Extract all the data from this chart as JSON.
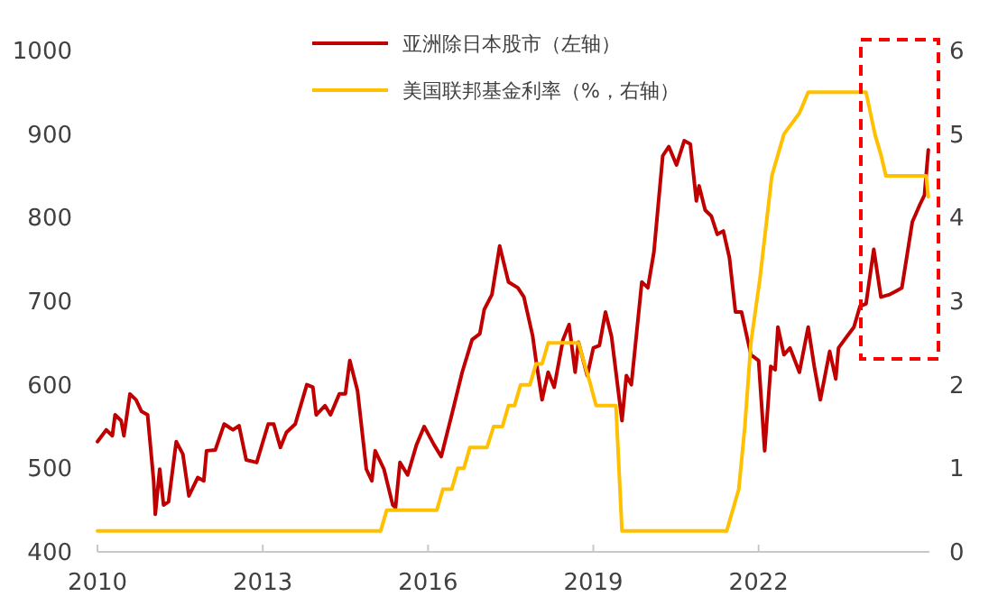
{
  "chart_data": {
    "type": "line",
    "legend": "top",
    "marker": "none",
    "line_style": "solid",
    "grid": false,
    "xlim": [
      2010,
      2025.1
    ],
    "xticks": [
      2010,
      2013,
      2016,
      2019,
      2022
    ],
    "ylim": [
      400,
      1000
    ],
    "yticks": [
      400,
      500,
      600,
      700,
      800,
      900,
      1000
    ],
    "y2lim": [
      0,
      6
    ],
    "y2ticks": [
      0,
      1,
      2,
      3,
      4,
      5,
      6
    ],
    "series": [
      {
        "name": "亚洲除日本股市（左轴）",
        "color": "#c00000",
        "x": [
          2010,
          2010.16,
          2010.27,
          2010.32,
          2010.43,
          2010.48,
          2010.59,
          2010.7,
          2010.8,
          2010.91,
          2011.02,
          2011.05,
          2011.13,
          2011.2,
          2011.29,
          2011.43,
          2011.55,
          2011.66,
          2011.82,
          2011.93,
          2011.98,
          2012.14,
          2012.3,
          2012.46,
          2012.57,
          2012.7,
          2012.89,
          2013.1,
          2013.2,
          2013.32,
          2013.43,
          2013.59,
          2013.8,
          2013.91,
          2013.97,
          2014.13,
          2014.23,
          2014.39,
          2014.5,
          2014.58,
          2014.72,
          2014.88,
          2014.98,
          2015.04,
          2015.2,
          2015.36,
          2015.41,
          2015.49,
          2015.63,
          2015.79,
          2015.93,
          2016.11,
          2016.24,
          2016.43,
          2016.62,
          2016.8,
          2016.94,
          2017.02,
          2017.16,
          2017.3,
          2017.46,
          2017.63,
          2017.74,
          2017.9,
          2017.96,
          2018.07,
          2018.18,
          2018.29,
          2018.45,
          2018.56,
          2018.67,
          2018.73,
          2018.89,
          2019,
          2019.11,
          2019.22,
          2019.33,
          2019.52,
          2019.6,
          2019.69,
          2019.88,
          2019.99,
          2020.1,
          2020.26,
          2020.37,
          2020.51,
          2020.65,
          2020.76,
          2020.87,
          2020.92,
          2021.03,
          2021.14,
          2021.25,
          2021.36,
          2021.47,
          2021.58,
          2021.69,
          2021.86,
          2022,
          2022.11,
          2022.22,
          2022.3,
          2022.35,
          2022.46,
          2022.57,
          2022.74,
          2022.9,
          2023.01,
          2023.12,
          2023.29,
          2023.4,
          2023.45,
          2023.56,
          2023.73,
          2023.84,
          2023.95,
          2024.09,
          2024.22,
          2024.38,
          2024.49,
          2024.6,
          2024.79,
          2024.93,
          2025.01,
          2025.08
        ],
        "values": [
          532,
          546,
          539,
          564,
          557,
          539,
          589,
          582,
          568,
          564,
          485,
          445,
          499,
          456,
          460,
          532,
          517,
          467,
          489,
          485,
          521,
          522,
          553,
          546,
          551,
          510,
          507,
          553,
          553,
          525,
          543,
          553,
          600,
          597,
          564,
          575,
          564,
          589,
          589,
          629,
          593,
          499,
          485,
          521,
          499,
          456,
          453,
          507,
          492,
          528,
          550,
          528,
          514,
          564,
          615,
          654,
          661,
          690,
          708,
          766,
          723,
          716,
          705,
          658,
          629,
          582,
          615,
          597,
          654,
          672,
          615,
          651,
          611,
          644,
          647,
          687,
          658,
          557,
          611,
          600,
          723,
          716,
          759,
          874,
          885,
          863,
          892,
          888,
          820,
          838,
          809,
          802,
          780,
          784,
          752,
          687,
          687,
          636,
          629,
          521,
          622,
          618,
          669,
          636,
          644,
          615,
          669,
          622,
          582,
          640,
          607,
          644,
          654,
          669,
          694,
          697,
          762,
          705,
          708,
          712,
          716,
          795,
          816,
          827,
          881
        ]
      },
      {
        "name": "美国联邦基金利率（%，右轴）",
        "color": "#ffc000",
        "axis": "y2",
        "x": [
          2010,
          2015.14,
          2015.25,
          2016.16,
          2016.27,
          2016.43,
          2016.54,
          2016.65,
          2016.76,
          2017.07,
          2017.19,
          2017.35,
          2017.46,
          2017.57,
          2017.68,
          2017.85,
          2017.96,
          2018.07,
          2018.18,
          2018.73,
          2018.84,
          2018.95,
          2019.05,
          2019.41,
          2019.52,
          2021.42,
          2021.53,
          2021.64,
          2021.75,
          2021.86,
          2022.02,
          2022.24,
          2022.46,
          2022.74,
          2022.9,
          2023.95,
          2024.11,
          2024.22,
          2024.31,
          2025.04,
          2025.08
        ],
        "values": [
          0.25,
          0.25,
          0.5,
          0.5,
          0.75,
          0.75,
          1,
          1,
          1.25,
          1.25,
          1.5,
          1.5,
          1.75,
          1.75,
          2,
          2,
          2.25,
          2.25,
          2.5,
          2.5,
          2.25,
          2,
          1.75,
          1.75,
          0.25,
          0.25,
          0.5,
          0.75,
          1.5,
          2.5,
          3.25,
          4.5,
          5,
          5.25,
          5.5,
          5.5,
          5,
          4.75,
          4.5,
          4.5,
          4.25
        ]
      }
    ]
  }
}
